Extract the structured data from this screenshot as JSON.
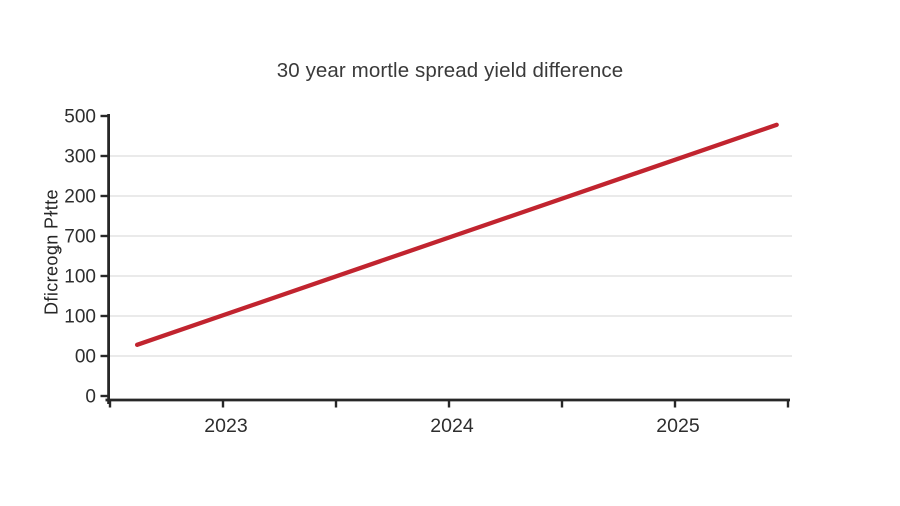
{
  "page": {
    "background": "#ffffff"
  },
  "chart_data": {
    "type": "line",
    "title": "30 year mortle spread yield difference",
    "xlabel": "",
    "ylabel": "Dficreoǥn Pɫtte",
    "grid": "horizontal-only",
    "legend": "none",
    "background": "#ffffff",
    "axis_color": "#272727",
    "grid_color": "#e4e4e4",
    "text_color": "#2e2e2e",
    "x_axis": {
      "min": 2022.5,
      "max": 2025.5,
      "tick_step": 0.5,
      "labeled_ticks": [
        "2023",
        "2024",
        "2025"
      ],
      "labeled_tick_values": [
        2023,
        2024,
        2025
      ]
    },
    "y_axis": {
      "min": 0,
      "max": 7.2,
      "tick_step": 1,
      "tick_labels_top_to_bottom": [
        "500",
        "300",
        "200",
        "700",
        "100",
        "100",
        "00",
        "0"
      ],
      "gridline_tick_indices": [
        1,
        2,
        3,
        4,
        5,
        6
      ]
    },
    "series": [
      {
        "name": "yield-spread-line",
        "color": "#c1242f",
        "stroke_width": 4.3,
        "points": [
          {
            "x": 2022.62,
            "y": 1.28
          },
          {
            "x": 2025.45,
            "y": 6.78
          }
        ]
      }
    ]
  }
}
